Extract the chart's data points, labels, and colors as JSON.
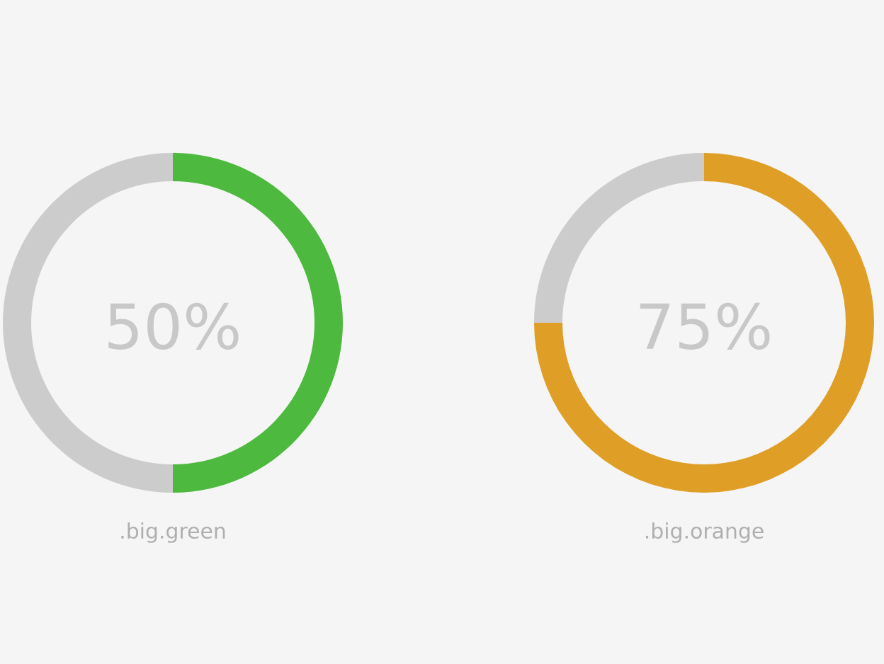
{
  "chart_data": [
    {
      "type": "donut",
      "title": ".big.green",
      "annotations": [
        "50%"
      ],
      "categories": [
        null,
        null
      ],
      "values": [
        50,
        50
      ],
      "colors": [
        "#4db93e",
        "#cccccc"
      ]
    },
    {
      "type": "donut",
      "title": ".big.orange",
      "annotations": [
        "75%"
      ],
      "categories": [
        null,
        null
      ],
      "values": [
        75,
        25
      ],
      "colors": [
        "#df9e26",
        "#cccccc"
      ]
    }
  ]
}
